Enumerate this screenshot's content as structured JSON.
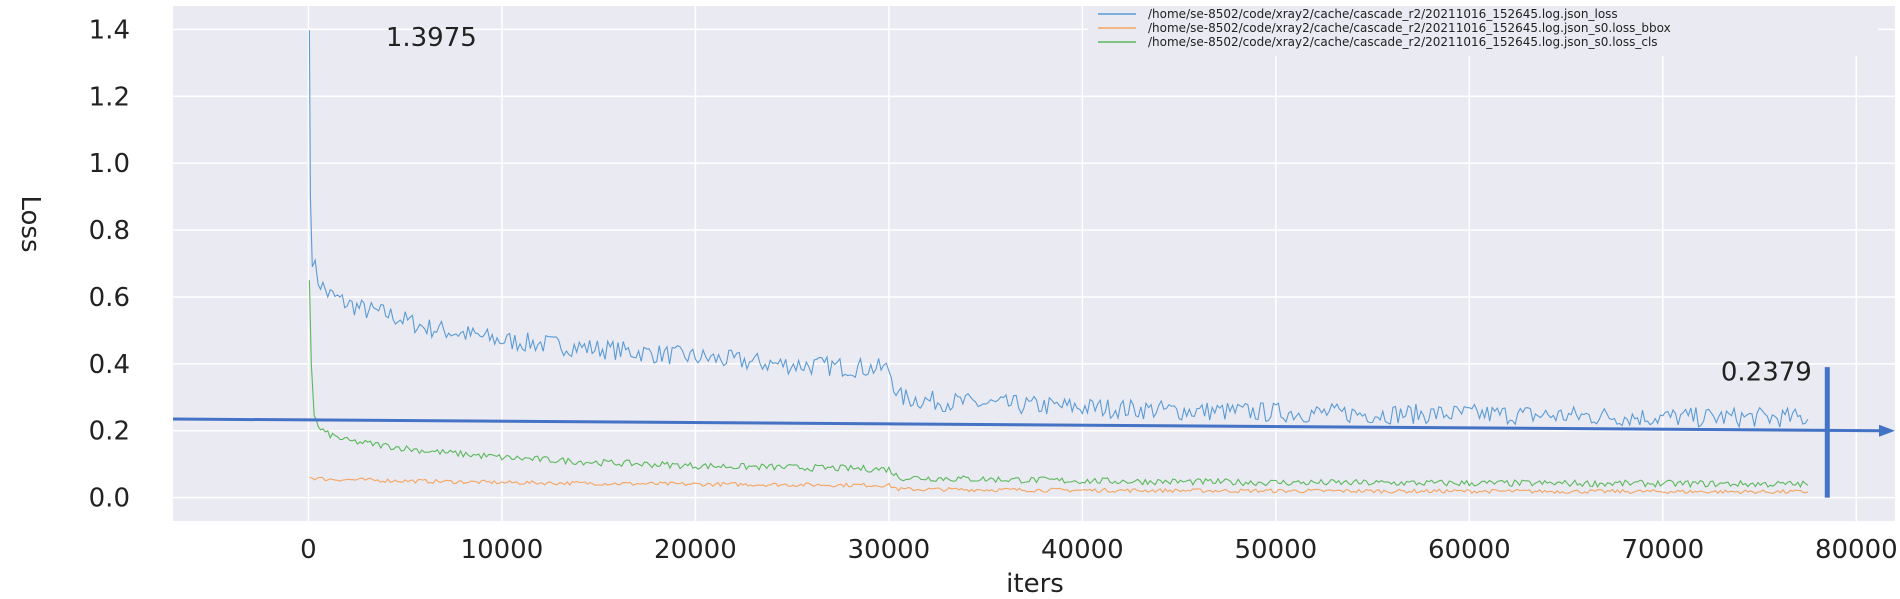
{
  "chart_data": {
    "type": "line",
    "title": "",
    "xlabel": "iters",
    "ylabel": "Loss",
    "xlim": [
      -7000,
      82000
    ],
    "ylim": [
      -0.07,
      1.47
    ],
    "xticks": [
      "0",
      "10000",
      "20000",
      "30000",
      "40000",
      "50000",
      "60000",
      "70000",
      "80000"
    ],
    "yticks": [
      "0.0",
      "0.2",
      "0.4",
      "0.6",
      "0.8",
      "1.0",
      "1.2",
      "1.4"
    ],
    "grid": true,
    "legend_position": "top-right",
    "series": [
      {
        "name": "/home/se-8502/code/xray2/cache/cascade_r2/20211016_152645.log.json_loss",
        "color": "#5b9bd5",
        "x": [
          50,
          100,
          200,
          500,
          1000,
          2000,
          3000,
          4000,
          5000,
          6000,
          7000,
          8000,
          9000,
          10000,
          12000,
          14000,
          16000,
          18000,
          20000,
          22000,
          24000,
          26000,
          28000,
          30000,
          30500,
          32000,
          35000,
          40000,
          45000,
          50000,
          55000,
          60000,
          65000,
          70000,
          75000,
          77500
        ],
        "values": [
          1.3975,
          0.9,
          0.72,
          0.65,
          0.61,
          0.58,
          0.56,
          0.55,
          0.53,
          0.51,
          0.5,
          0.49,
          0.48,
          0.47,
          0.46,
          0.45,
          0.44,
          0.43,
          0.42,
          0.41,
          0.4,
          0.395,
          0.39,
          0.385,
          0.3,
          0.29,
          0.28,
          0.27,
          0.26,
          0.255,
          0.25,
          0.25,
          0.245,
          0.24,
          0.24,
          0.2379
        ],
        "noise": 0.03
      },
      {
        "name": "/home/se-8502/code/xray2/cache/cascade_r2/20211016_152645.log.json_s0.loss_bbox",
        "color": "#f4a460",
        "x": [
          50,
          1000,
          5000,
          10000,
          20000,
          30000,
          30500,
          40000,
          50000,
          60000,
          70000,
          77500
        ],
        "values": [
          0.06,
          0.055,
          0.05,
          0.045,
          0.04,
          0.037,
          0.025,
          0.022,
          0.02,
          0.019,
          0.018,
          0.017
        ],
        "noise": 0.006
      },
      {
        "name": "/home/se-8502/code/xray2/cache/cascade_r2/20211016_152645.log.json_s0.loss_cls",
        "color": "#5cb85c",
        "x": [
          50,
          150,
          300,
          500,
          1000,
          2000,
          4000,
          6000,
          8000,
          10000,
          15000,
          20000,
          25000,
          30000,
          30500,
          35000,
          40000,
          50000,
          60000,
          70000,
          77500
        ],
        "values": [
          0.65,
          0.4,
          0.25,
          0.21,
          0.19,
          0.17,
          0.155,
          0.14,
          0.13,
          0.12,
          0.105,
          0.095,
          0.09,
          0.085,
          0.06,
          0.055,
          0.05,
          0.045,
          0.043,
          0.042,
          0.04
        ],
        "noise": 0.01
      }
    ],
    "annotations": [
      {
        "text": "1.3975",
        "x": 4000,
        "y": 1.35
      },
      {
        "text": "0.2379",
        "x": 73000,
        "y": 0.35
      }
    ],
    "trend_arrow": {
      "color": "#4472c4",
      "from": [
        -7000,
        0.235
      ],
      "to": [
        82000,
        0.2
      ]
    },
    "marker_line": {
      "color": "#4472c4",
      "x": 78500,
      "y_range": [
        0.0,
        0.39
      ]
    }
  }
}
